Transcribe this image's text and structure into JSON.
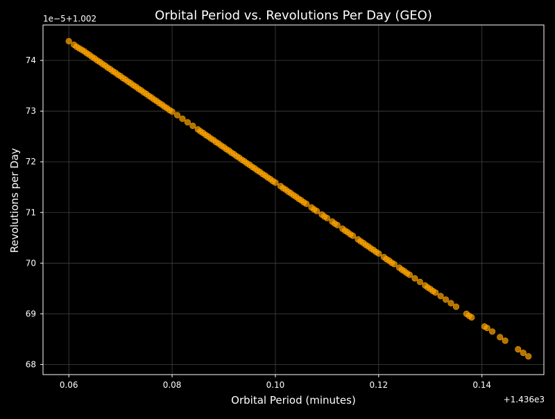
{
  "chart_data": {
    "type": "scatter",
    "title": "Orbital Period vs. Revolutions Per Day (GEO)",
    "xlabel": "Orbital Period (minutes)",
    "ylabel": "Revolutions per Day",
    "x_offset_label": "+1.436e3",
    "y_offset_label": "1e−5+1.002",
    "x_offset": 1436,
    "y_base": 1.002,
    "y_scale": 1e-05,
    "x_ticks": [
      0.06,
      0.08,
      0.1,
      0.12,
      0.14
    ],
    "x_tick_labels": [
      "0.06",
      "0.08",
      "0.10",
      "0.12",
      "0.14"
    ],
    "y_ticks": [
      68,
      69,
      70,
      71,
      72,
      73,
      74
    ],
    "y_tick_labels": [
      "68",
      "69",
      "70",
      "71",
      "72",
      "73",
      "74"
    ],
    "xlim": [
      0.055,
      0.152
    ],
    "ylim": [
      67.8,
      74.7
    ],
    "grid": true,
    "legend": "none",
    "colors": {
      "background": "#000000",
      "marker": "#ffa500",
      "grid": "#444444",
      "text": "#ffffff"
    },
    "series": [
      {
        "x": [
          0.06,
          0.061,
          0.0615,
          0.062,
          0.0625,
          0.063,
          0.0635,
          0.064,
          0.0645,
          0.065,
          0.0655,
          0.066,
          0.0665,
          0.067,
          0.0675,
          0.068,
          0.0685,
          0.069,
          0.0695,
          0.07,
          0.0705,
          0.071,
          0.0715,
          0.072,
          0.0725,
          0.073,
          0.0735,
          0.074,
          0.0745,
          0.075,
          0.0755,
          0.076,
          0.0765,
          0.077,
          0.0775,
          0.078,
          0.0785,
          0.079,
          0.0795,
          0.08,
          0.081,
          0.082,
          0.083,
          0.084,
          0.085,
          0.0855,
          0.086,
          0.0865,
          0.087,
          0.0875,
          0.088,
          0.0885,
          0.089,
          0.0895,
          0.09,
          0.0905,
          0.091,
          0.0915,
          0.092,
          0.0925,
          0.093,
          0.0935,
          0.094,
          0.0945,
          0.095,
          0.0955,
          0.096,
          0.0965,
          0.097,
          0.0975,
          0.098,
          0.0985,
          0.099,
          0.0995,
          0.1,
          0.101,
          0.1015,
          0.102,
          0.1025,
          0.103,
          0.1035,
          0.104,
          0.1045,
          0.105,
          0.1055,
          0.106,
          0.107,
          0.1075,
          0.108,
          0.109,
          0.1095,
          0.11,
          0.111,
          0.1115,
          0.112,
          0.113,
          0.1135,
          0.114,
          0.1145,
          0.115,
          0.116,
          0.1165,
          0.117,
          0.1175,
          0.118,
          0.1185,
          0.119,
          0.1195,
          0.12,
          0.121,
          0.1215,
          0.122,
          0.1225,
          0.123,
          0.124,
          0.1245,
          0.125,
          0.1255,
          0.126,
          0.127,
          0.128,
          0.129,
          0.1295,
          0.13,
          0.1305,
          0.131,
          0.132,
          0.133,
          0.134,
          0.135,
          0.137,
          0.1375,
          0.138,
          0.1405,
          0.141,
          0.142,
          0.1435,
          0.1445,
          0.147,
          0.148,
          0.149
        ],
        "y": [
          74.38,
          74.31,
          74.27,
          74.24,
          74.21,
          74.18,
          74.14,
          74.11,
          74.07,
          74.04,
          74.0,
          73.97,
          73.93,
          73.9,
          73.86,
          73.83,
          73.79,
          73.76,
          73.72,
          73.69,
          73.65,
          73.62,
          73.58,
          73.55,
          73.51,
          73.48,
          73.44,
          73.41,
          73.37,
          73.34,
          73.3,
          73.27,
          73.23,
          73.2,
          73.16,
          73.13,
          73.09,
          73.06,
          73.02,
          72.99,
          72.92,
          72.85,
          72.78,
          72.71,
          72.64,
          72.6,
          72.57,
          72.53,
          72.5,
          72.46,
          72.43,
          72.39,
          72.36,
          72.32,
          72.29,
          72.25,
          72.22,
          72.18,
          72.15,
          72.11,
          72.08,
          72.04,
          72.01,
          71.97,
          71.94,
          71.9,
          71.87,
          71.83,
          71.8,
          71.76,
          71.73,
          71.69,
          71.66,
          71.62,
          71.59,
          71.52,
          71.48,
          71.45,
          71.41,
          71.38,
          71.34,
          71.31,
          71.27,
          71.24,
          71.2,
          71.17,
          71.1,
          71.06,
          71.03,
          70.96,
          70.92,
          70.89,
          70.82,
          70.78,
          70.75,
          70.68,
          70.64,
          70.61,
          70.57,
          70.54,
          70.47,
          70.43,
          70.4,
          70.36,
          70.33,
          70.29,
          70.26,
          70.22,
          70.19,
          70.12,
          70.08,
          70.05,
          70.01,
          69.98,
          69.91,
          69.87,
          69.84,
          69.8,
          69.77,
          69.7,
          69.63,
          69.56,
          69.52,
          69.49,
          69.45,
          69.42,
          69.35,
          69.28,
          69.21,
          69.14,
          69.0,
          68.96,
          68.93,
          68.75,
          68.72,
          68.65,
          68.54,
          68.47,
          68.3,
          68.23,
          68.16
        ]
      }
    ]
  }
}
